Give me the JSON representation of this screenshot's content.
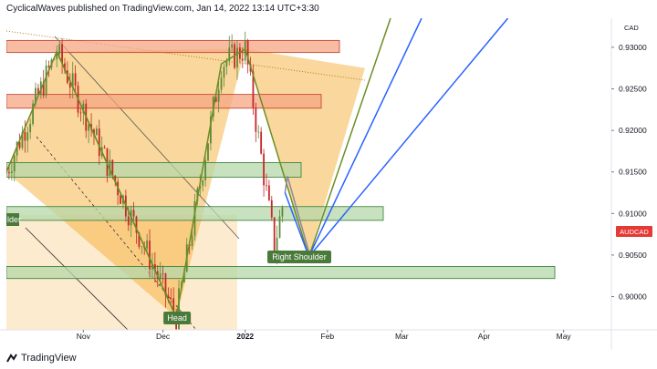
{
  "header": {
    "published": "CyclicalWaves published on TradingView.com, Jan 14, 2022 13:14 UTC+3:30"
  },
  "footer": {
    "brand": "TradingView",
    "logo_icon": "tradingview-logo-icon"
  },
  "colors": {
    "candle_up": "#26a69a",
    "candle_down": "#ef5350",
    "pattern_fill": "#f5a623",
    "pattern_stroke": "#6b8e23",
    "zone_red": "#f4a582",
    "zone_green": "#b6d7a8",
    "projection_blue": "#2962ff",
    "symbol_badge": "#e53935"
  },
  "chart_data": {
    "type": "candlestick",
    "symbol": "AUDCAD",
    "currency": "CAD",
    "y_ticks": [
      "0.93000",
      "0.92500",
      "0.92000",
      "0.91500",
      "0.91000",
      "0.90500",
      "0.90000"
    ],
    "y_tick_values": [
      0.93,
      0.925,
      0.92,
      0.915,
      0.91,
      0.905,
      0.9
    ],
    "ylim": [
      0.896,
      0.9335
    ],
    "x_ticks": [
      "Nov",
      "Dec",
      "2022",
      "Feb",
      "Mar",
      "Apr",
      "May"
    ],
    "last_price_label": "AUDCAD",
    "annotations": [
      "Head",
      "Right Shoulder",
      "lder"
    ],
    "horizontal_zones": [
      {
        "low": 0.9297,
        "high": 0.9305,
        "color": "red"
      },
      {
        "low": 0.923,
        "high": 0.924,
        "color": "red"
      },
      {
        "low": 0.9147,
        "high": 0.9158,
        "color": "green"
      },
      {
        "low": 0.9095,
        "high": 0.9105,
        "color": "green"
      },
      {
        "low": 0.9025,
        "high": 0.9033,
        "color": "green"
      }
    ],
    "price_path": [
      {
        "date": "2021-10-03",
        "value": 0.915
      },
      {
        "date": "2021-10-22",
        "value": 0.9295
      },
      {
        "date": "2021-12-06",
        "value": 0.8975
      },
      {
        "date": "2021-12-23",
        "value": 0.928
      },
      {
        "date": "2022-01-01",
        "value": 0.9298
      },
      {
        "date": "2022-01-12",
        "value": 0.906
      },
      {
        "date": "2022-01-16",
        "value": 0.9125
      }
    ],
    "projection": [
      {
        "date": "2022-01-16",
        "value": 0.9125
      },
      {
        "date": "2022-01-25",
        "value": 0.9048
      },
      {
        "date": "2022-04-10",
        "value": 0.9335
      }
    ]
  }
}
